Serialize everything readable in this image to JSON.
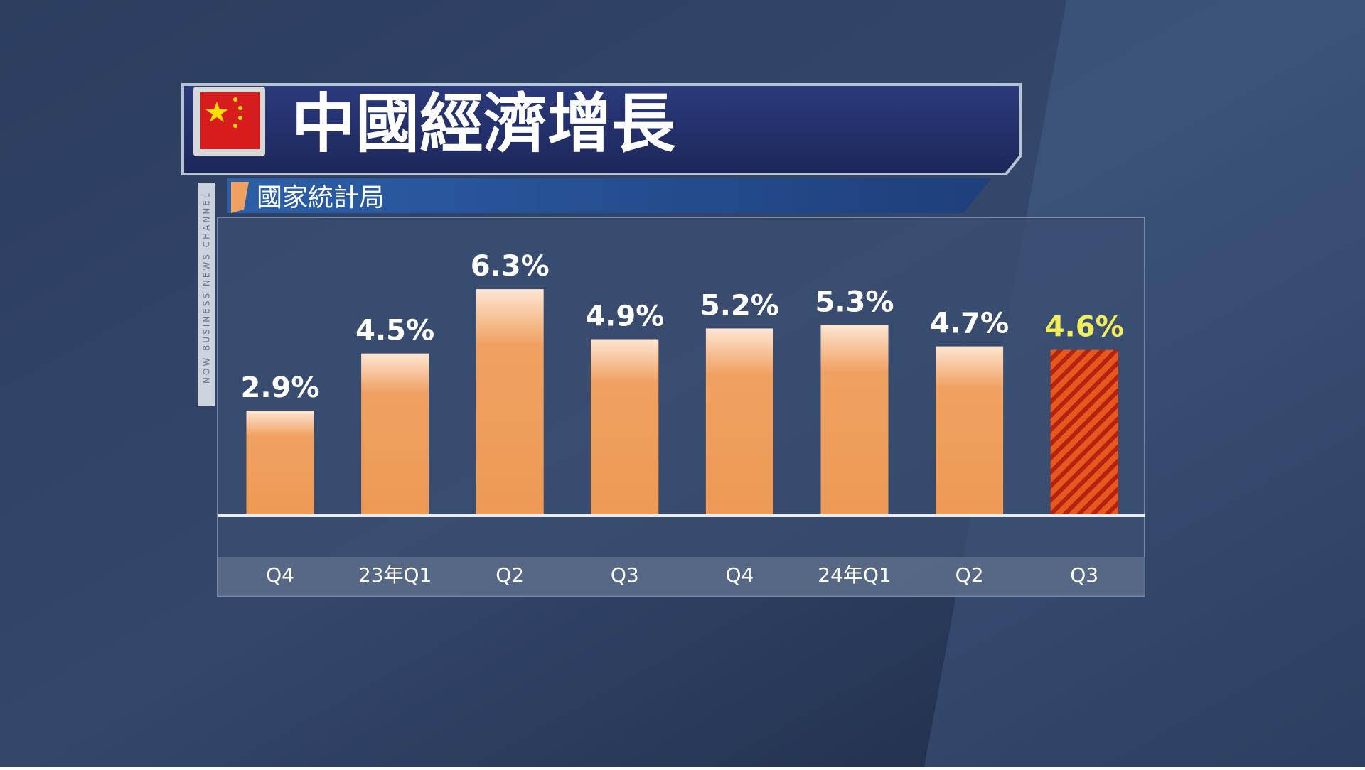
{
  "chart_data": {
    "type": "bar",
    "title": "中國經濟增長",
    "subtitle": "國家統計局",
    "categories": [
      "Q4",
      "23年Q1",
      "Q2",
      "Q3",
      "Q4",
      "24年Q1",
      "Q2",
      "Q3"
    ],
    "values": [
      2.9,
      4.5,
      6.3,
      4.9,
      5.2,
      5.3,
      4.7,
      4.6
    ],
    "value_labels": [
      "2.9%",
      "4.5%",
      "6.3%",
      "4.9%",
      "5.2%",
      "5.3%",
      "4.7%",
      "4.6%"
    ],
    "colors": [
      "#f0a060",
      "#f0a060",
      "#f0a060",
      "#f0a060",
      "#f0a060",
      "#f0a060",
      "#f0a060",
      "hatch"
    ],
    "label_colors": [
      "#ffffff",
      "#ffffff",
      "#ffffff",
      "#ffffff",
      "#ffffff",
      "#ffffff",
      "#ffffff",
      "#f2ee5a"
    ]
  },
  "branding": {
    "channel": "NOW BUSINESS NEWS CHANNEL"
  }
}
